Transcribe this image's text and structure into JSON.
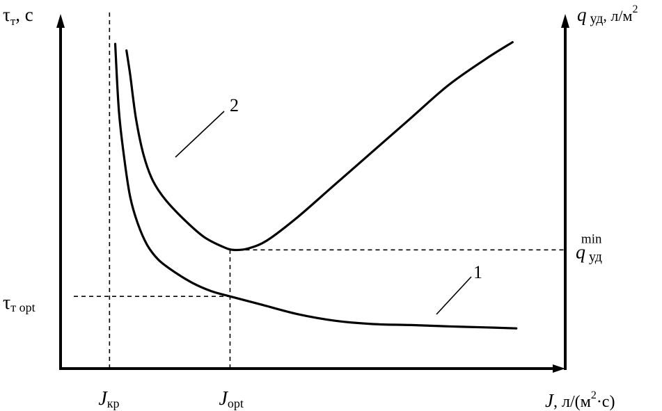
{
  "chart_data": {
    "type": "line",
    "title": "",
    "xlabel": {
      "var": "J",
      "unit_pre": ",  л/(м",
      "unit_sup": "2",
      "unit_post": "·с)"
    },
    "ylabel_left": {
      "var": "τ",
      "sub": "т",
      "post": ", с"
    },
    "ylabel_right": {
      "var": "q",
      "sub": "уд",
      "post": ", л/м",
      "sup": "2"
    },
    "x_ticks": [
      {
        "id": "j-kr",
        "var": "J",
        "sub": "кр",
        "x": 0.5
      },
      {
        "id": "j-opt",
        "var": "J",
        "sub": "opt",
        "x": 3.7
      }
    ],
    "y_left_ticks": [
      {
        "id": "tau-opt",
        "var": "τ",
        "sub": "т opt",
        "y": 2.19
      }
    ],
    "y_right_ticks": [
      {
        "id": "q-min",
        "var": "q",
        "sub": "уд",
        "sup": "min",
        "y": 3.6
      }
    ],
    "xlim": [
      -0.8,
      12.6
    ],
    "ylim_left": [
      0,
      10
    ],
    "ylim_right": [
      0,
      10
    ],
    "series": [
      {
        "name": "1",
        "axis": "left",
        "x": [
          0.65,
          0.75,
          0.9,
          1.05,
          1.25,
          1.5,
          1.8,
          2.2,
          2.7,
          3.2,
          3.7,
          4.5,
          5.5,
          6.5,
          7.5,
          8.5,
          9.5,
          10.5,
          11.3
        ],
        "y": [
          9.85,
          7.8,
          6.3,
          5.2,
          4.4,
          3.75,
          3.3,
          2.95,
          2.6,
          2.35,
          2.19,
          1.95,
          1.65,
          1.45,
          1.35,
          1.32,
          1.28,
          1.25,
          1.22
        ]
      },
      {
        "name": "2",
        "axis": "right",
        "x": [
          0.95,
          1.05,
          1.2,
          1.4,
          1.65,
          2.0,
          2.5,
          3.0,
          3.5,
          3.8,
          4.2,
          4.7,
          5.5,
          6.5,
          7.5,
          8.5,
          9.5,
          10.5,
          11.2
        ],
        "y": [
          9.65,
          8.9,
          7.6,
          6.5,
          5.7,
          5.1,
          4.5,
          4.0,
          3.7,
          3.6,
          3.65,
          3.9,
          4.6,
          5.6,
          6.6,
          7.6,
          8.6,
          9.4,
          9.9
        ]
      }
    ],
    "curve_labels": [
      "1",
      "2"
    ],
    "grid": false,
    "legend": "none"
  }
}
